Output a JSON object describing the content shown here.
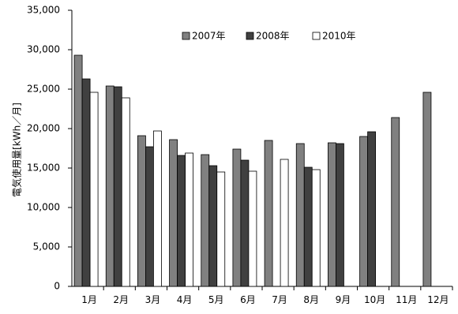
{
  "chart_data": {
    "type": "bar",
    "title": "",
    "xlabel": "",
    "ylabel": "電気使用量[kWh／月]",
    "ylim": [
      0,
      35000
    ],
    "yticks": [
      0,
      5000,
      10000,
      15000,
      20000,
      25000,
      30000,
      35000
    ],
    "ytick_labels": [
      "0",
      "5,000",
      "10,000",
      "15,000",
      "20,000",
      "25,000",
      "30,000",
      "35,000"
    ],
    "grid": false,
    "legend_position": "top-center",
    "categories": [
      "1月",
      "2月",
      "3月",
      "4月",
      "5月",
      "6月",
      "7月",
      "8月",
      "9月",
      "10月",
      "11月",
      "12月"
    ],
    "series": [
      {
        "name": "2007年",
        "color": "#808080",
        "values": [
          29300,
          25400,
          19100,
          18600,
          16700,
          17400,
          18500,
          18100,
          18200,
          19000,
          21400,
          24600
        ]
      },
      {
        "name": "2008年",
        "color": "#404040",
        "values": [
          26300,
          25300,
          17700,
          16600,
          15300,
          16000,
          null,
          15100,
          18100,
          19600,
          null,
          null
        ]
      },
      {
        "name": "2010年",
        "color": "#ffffff",
        "values": [
          24600,
          23900,
          19700,
          16900,
          14500,
          14600,
          16100,
          14800,
          null,
          null,
          null,
          null
        ]
      }
    ]
  }
}
